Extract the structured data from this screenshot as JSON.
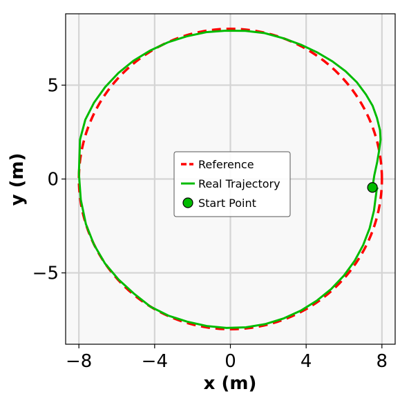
{
  "chart_data": {
    "type": "line",
    "xlabel": "x (m)",
    "ylabel": "y (m)",
    "xlim": [
      -8.7,
      8.7
    ],
    "ylim": [
      -8.8,
      8.8
    ],
    "xticks": [
      -8,
      -4,
      0,
      4,
      8
    ],
    "xtick_labels": [
      "−8",
      "−4",
      "0",
      "4",
      "8"
    ],
    "yticks": [
      -5,
      0,
      5
    ],
    "ytick_labels": [
      "−5",
      "0",
      "5"
    ],
    "grid": true,
    "legend_position": "center",
    "series": [
      {
        "name": "Reference",
        "style": "dashed",
        "color": "#ff0000",
        "shape": "circle",
        "center": [
          0,
          0
        ],
        "radius": 8
      },
      {
        "name": "Real Trajectory",
        "style": "solid",
        "color": "#00bb00",
        "x": [
          7.5,
          7.6,
          7.75,
          7.85,
          7.93,
          7.9,
          7.74,
          7.51,
          7.16,
          6.68,
          6.08,
          5.38,
          4.59,
          3.73,
          2.79,
          1.81,
          0.79,
          -0.25,
          -1.28,
          -2.31,
          -3.3,
          -4.24,
          -5.12,
          -5.91,
          -6.61,
          -7.2,
          -7.66,
          -7.94,
          -8.0,
          -7.9,
          -7.63,
          -7.2,
          -6.62,
          -5.91,
          -5.11,
          -4.22,
          -3.27,
          -2.28,
          -1.25,
          -0.21,
          0.82,
          1.83,
          2.8,
          3.72,
          4.56,
          5.32,
          5.99,
          6.56,
          7.01,
          7.35,
          7.58,
          7.72,
          7.77
        ],
        "y": [
          -0.45,
          0.2,
          0.9,
          1.5,
          2.1,
          2.6,
          3.25,
          3.9,
          4.5,
          5.15,
          5.74,
          6.27,
          6.74,
          7.15,
          7.5,
          7.77,
          7.89,
          7.9,
          7.82,
          7.6,
          7.28,
          6.84,
          6.3,
          5.65,
          4.9,
          4.07,
          3.16,
          2.1,
          0.3,
          -1.1,
          -2.4,
          -3.5,
          -4.5,
          -5.35,
          -6.09,
          -6.8,
          -7.28,
          -7.6,
          -7.83,
          -7.93,
          -7.9,
          -7.73,
          -7.43,
          -7.01,
          -6.48,
          -5.86,
          -5.15,
          -4.36,
          -3.52,
          -2.63,
          -1.69,
          -0.6,
          -0.45
        ]
      },
      {
        "name": "Start Point",
        "style": "marker",
        "color": "#00bb00",
        "x": [
          7.5
        ],
        "y": [
          -0.45
        ]
      }
    ]
  }
}
